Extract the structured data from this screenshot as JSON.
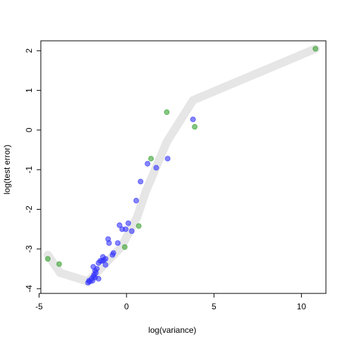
{
  "chart_data": {
    "type": "scatter",
    "title": "",
    "xlabel": "log(variance)",
    "ylabel": "log(test error)",
    "xlim": [
      -4.9,
      11.4
    ],
    "ylim": [
      -4.12,
      2.25
    ],
    "x_ticks": [
      -5,
      0,
      5,
      10
    ],
    "y_ticks": [
      -4,
      -3,
      -2,
      -1,
      0,
      1,
      2
    ],
    "grid": false,
    "legend": "none",
    "colors": {
      "blue_points": "#3333ff",
      "green_points": "#33a02c",
      "trend_line": "#e6e6e6"
    },
    "trend_line": {
      "x": [
        -4.5,
        -3.8,
        -2.2,
        -0.3,
        0.6,
        1.1,
        2.3,
        3.8,
        10.8
      ],
      "y": [
        -3.15,
        -3.6,
        -3.82,
        -2.95,
        -2.2,
        -1.55,
        -0.3,
        0.75,
        2.05
      ]
    },
    "series": [
      {
        "color": "blue",
        "points": [
          [
            -2.2,
            -3.85
          ],
          [
            -2.15,
            -3.8
          ],
          [
            -2.1,
            -3.82
          ],
          [
            -2.0,
            -3.75
          ],
          [
            -1.95,
            -3.8
          ],
          [
            -1.9,
            -3.7
          ],
          [
            -1.85,
            -3.65
          ],
          [
            -1.8,
            -3.72
          ],
          [
            -1.75,
            -3.6
          ],
          [
            -1.9,
            -3.45
          ],
          [
            -1.8,
            -3.55
          ],
          [
            -1.7,
            -3.5
          ],
          [
            -1.6,
            -3.75
          ],
          [
            -1.6,
            -3.35
          ],
          [
            -1.5,
            -3.3
          ],
          [
            -1.4,
            -3.3
          ],
          [
            -1.35,
            -3.2
          ],
          [
            -1.3,
            -3.28
          ],
          [
            -1.2,
            -3.4
          ],
          [
            -1.2,
            -3.25
          ],
          [
            -1.05,
            -2.75
          ],
          [
            -1.0,
            -2.85
          ],
          [
            -0.8,
            -3.15
          ],
          [
            -0.75,
            -3.1
          ],
          [
            -0.5,
            -2.85
          ],
          [
            -0.4,
            -2.4
          ],
          [
            -0.25,
            -2.5
          ],
          [
            -0.05,
            -2.5
          ],
          [
            0.1,
            -2.35
          ],
          [
            0.3,
            -2.55
          ],
          [
            0.55,
            -1.78
          ],
          [
            0.8,
            -1.3
          ],
          [
            1.2,
            -0.85
          ],
          [
            1.7,
            -0.95
          ],
          [
            2.35,
            -0.72
          ],
          [
            3.8,
            0.27
          ]
        ]
      },
      {
        "color": "green",
        "points": [
          [
            -4.5,
            -3.25
          ],
          [
            -3.85,
            -3.38
          ],
          [
            -0.1,
            -2.95
          ],
          [
            0.7,
            -2.42
          ],
          [
            1.4,
            -0.72
          ],
          [
            2.3,
            0.45
          ],
          [
            3.9,
            0.08
          ],
          [
            10.8,
            2.05
          ]
        ]
      }
    ]
  }
}
